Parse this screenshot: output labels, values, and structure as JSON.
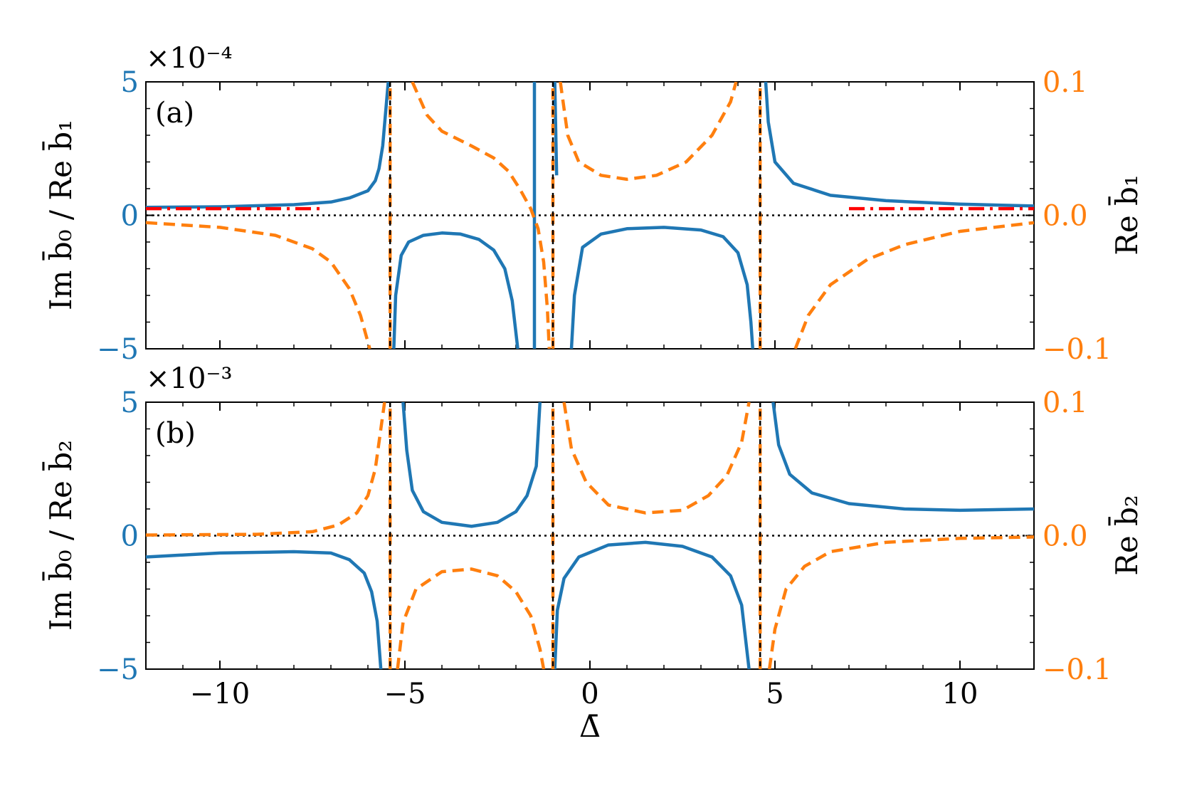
{
  "colors": {
    "left_axis": "#1f77b4",
    "right_axis": "#ff7f0e",
    "asymptote_marker": "#ff0000",
    "reference": "#000000"
  },
  "x_axis": {
    "label": "Δ̄",
    "xlim": [
      -12,
      12
    ],
    "ticks": [
      -10,
      -5,
      0,
      5,
      10
    ],
    "tick_labels": [
      "−10",
      "−5",
      "0",
      "5",
      "10"
    ]
  },
  "chart_data": [
    {
      "type": "line",
      "panel_label": "(a)",
      "xlim": [
        -12,
        12
      ],
      "left_axis": {
        "label": "Im b̄₀ / Re b̄₁",
        "ylim": [
          -0.0005,
          0.0005
        ],
        "scale_label": "×10⁻⁴",
        "ticks": [
          -5,
          0,
          5
        ],
        "tick_labels": [
          "−5",
          "0",
          "5"
        ]
      },
      "right_axis": {
        "label": "Re b̄₁",
        "ylim": [
          -0.1,
          0.1
        ],
        "ticks": [
          -0.1,
          0.0,
          0.1
        ],
        "tick_labels": [
          "−0.1",
          "0.0",
          "0.1"
        ]
      },
      "vertical_lines": [
        -5.4,
        -1.0,
        4.6
      ],
      "zero_line": 0,
      "series": [
        {
          "axis": "left",
          "style": "solid",
          "color": "#1f77b4",
          "segments": [
            [
              [
                -12,
                3e-05
              ],
              [
                -10,
                3.2e-05
              ],
              [
                -8,
                4e-05
              ],
              [
                -7,
                5e-05
              ],
              [
                -6.5,
                6.5e-05
              ],
              [
                -6.0,
                9.2e-05
              ],
              [
                -5.8,
                0.00013
              ],
              [
                -5.7,
                0.000175
              ],
              [
                -5.6,
                0.00026
              ],
              [
                -5.5,
                0.00042
              ],
              [
                -5.45,
                0.0005
              ]
            ],
            [
              [
                -5.3,
                -0.0005
              ],
              [
                -5.25,
                -0.0003
              ],
              [
                -5.1,
                -0.00015
              ],
              [
                -4.9,
                -0.0001
              ],
              [
                -4.5,
                -7.5e-05
              ],
              [
                -4.0,
                -6.6e-05
              ],
              [
                -3.5,
                -7e-05
              ],
              [
                -3.0,
                -9e-05
              ],
              [
                -2.6,
                -0.00013
              ],
              [
                -2.3,
                -0.0002
              ],
              [
                -2.1,
                -0.00032
              ],
              [
                -1.95,
                -0.0005
              ]
            ],
            [
              [
                -1.5,
                -0.0005
              ],
              [
                -1.5,
                0.0005
              ]
            ],
            [
              [
                -0.95,
                0.0005
              ],
              [
                -0.9,
                0.00015
              ]
            ],
            [
              [
                -0.5,
                -0.0005
              ],
              [
                -0.42,
                -0.0003
              ],
              [
                -0.2,
                -0.00012
              ],
              [
                0.3,
                -7e-05
              ],
              [
                1.0,
                -5e-05
              ],
              [
                2.0,
                -4.5e-05
              ],
              [
                3.0,
                -5.5e-05
              ],
              [
                3.6,
                -8e-05
              ],
              [
                4.0,
                -0.00014
              ],
              [
                4.25,
                -0.00026
              ],
              [
                4.35,
                -0.0004
              ],
              [
                4.4,
                -0.0005
              ]
            ],
            [
              [
                4.75,
                0.0005
              ],
              [
                4.82,
                0.00035
              ],
              [
                5.0,
                0.0002
              ],
              [
                5.5,
                0.00012
              ],
              [
                6.5,
                7.5e-05
              ],
              [
                8,
                5.5e-05
              ],
              [
                10,
                4.2e-05
              ],
              [
                12,
                3.5e-05
              ]
            ]
          ]
        },
        {
          "axis": "right",
          "style": "dashed",
          "color": "#ff7f0e",
          "segments": [
            [
              [
                -12,
                -0.0055
              ],
              [
                -10,
                -0.009
              ],
              [
                -8.5,
                -0.015
              ],
              [
                -7.5,
                -0.025
              ],
              [
                -7,
                -0.035
              ],
              [
                -6.5,
                -0.055
              ],
              [
                -6.2,
                -0.075
              ],
              [
                -5.95,
                -0.1
              ]
            ],
            [
              [
                -5.4,
                -0.1
              ],
              [
                -5.4,
                0.1
              ]
            ],
            [
              [
                -4.8,
                0.1
              ],
              [
                -4.4,
                0.075
              ],
              [
                -4.0,
                0.063
              ],
              [
                -3.2,
                0.052
              ],
              [
                -2.6,
                0.043
              ],
              [
                -2.2,
                0.033
              ],
              [
                -1.9,
                0.02
              ],
              [
                -1.6,
                0.005
              ],
              [
                -1.4,
                -0.01
              ],
              [
                -1.25,
                -0.035
              ],
              [
                -1.15,
                -0.07
              ],
              [
                -1.1,
                -0.1
              ]
            ],
            [
              [
                -1.0,
                -0.1
              ],
              [
                -1.0,
                0.1
              ]
            ],
            [
              [
                -0.8,
                0.1
              ],
              [
                -0.6,
                0.06
              ],
              [
                -0.3,
                0.04
              ],
              [
                0.3,
                0.03
              ],
              [
                1.0,
                0.027
              ],
              [
                1.8,
                0.03
              ],
              [
                2.6,
                0.04
              ],
              [
                3.3,
                0.06
              ],
              [
                3.8,
                0.085
              ],
              [
                3.95,
                0.1
              ]
            ],
            [
              [
                4.6,
                -0.1
              ],
              [
                4.6,
                0.1
              ]
            ],
            [
              [
                5.55,
                -0.1
              ],
              [
                5.9,
                -0.075
              ],
              [
                6.5,
                -0.052
              ],
              [
                7.5,
                -0.033
              ],
              [
                8.5,
                -0.022
              ],
              [
                10,
                -0.012
              ],
              [
                12,
                -0.0055
              ]
            ]
          ]
        },
        {
          "axis": "left",
          "style": "dashdot",
          "color": "#ff0000",
          "segments": [
            [
              [
                -12,
                2.5e-05
              ],
              [
                -7.2,
                2.5e-05
              ]
            ],
            [
              [
                7.0,
                2.5e-05
              ],
              [
                12,
                2.5e-05
              ]
            ]
          ]
        }
      ]
    },
    {
      "type": "line",
      "panel_label": "(b)",
      "xlim": [
        -12,
        12
      ],
      "left_axis": {
        "label": "Im b̄₀ / Re b̄₂",
        "ylim": [
          -0.005,
          0.005
        ],
        "scale_label": "×10⁻³",
        "ticks": [
          -5,
          0,
          5
        ],
        "tick_labels": [
          "−5",
          "0",
          "5"
        ]
      },
      "right_axis": {
        "label": "Re b̄₂",
        "ylim": [
          -0.1,
          0.1
        ],
        "ticks": [
          -0.1,
          0.0,
          0.1
        ],
        "tick_labels": [
          "−0.1",
          "0.0",
          "0.1"
        ]
      },
      "vertical_lines": [
        -5.4,
        -1.0,
        4.6
      ],
      "zero_line": 0,
      "series": [
        {
          "axis": "left",
          "style": "solid",
          "color": "#1f77b4",
          "segments": [
            [
              [
                -12,
                -0.0008
              ],
              [
                -10,
                -0.00065
              ],
              [
                -8,
                -0.0006
              ],
              [
                -7,
                -0.00065
              ],
              [
                -6.5,
                -0.0009
              ],
              [
                -6.1,
                -0.0014
              ],
              [
                -5.9,
                -0.0021
              ],
              [
                -5.75,
                -0.0032
              ],
              [
                -5.65,
                -0.005
              ]
            ],
            [
              [
                -5.05,
                0.005
              ],
              [
                -4.95,
                0.0032
              ],
              [
                -4.8,
                0.0017
              ],
              [
                -4.5,
                0.0009
              ],
              [
                -4.0,
                0.0005
              ],
              [
                -3.2,
                0.00035
              ],
              [
                -2.5,
                0.0005
              ],
              [
                -2.0,
                0.0009
              ],
              [
                -1.7,
                0.0015
              ],
              [
                -1.45,
                0.0026
              ],
              [
                -1.35,
                0.005
              ]
            ],
            [
              [
                -0.95,
                -0.005
              ],
              [
                -0.88,
                -0.0028
              ],
              [
                -0.7,
                -0.0016
              ],
              [
                -0.3,
                -0.0008
              ],
              [
                0.5,
                -0.00035
              ],
              [
                1.5,
                -0.00025
              ],
              [
                2.5,
                -0.0004
              ],
              [
                3.3,
                -0.0008
              ],
              [
                3.8,
                -0.0015
              ],
              [
                4.1,
                -0.0026
              ],
              [
                4.3,
                -0.005
              ]
            ],
            [
              [
                4.95,
                0.005
              ],
              [
                5.1,
                0.0034
              ],
              [
                5.4,
                0.0023
              ],
              [
                6.0,
                0.0016
              ],
              [
                7.0,
                0.0012
              ],
              [
                8.5,
                0.001
              ],
              [
                10,
                0.00095
              ],
              [
                12,
                0.001
              ]
            ]
          ]
        },
        {
          "axis": "right",
          "style": "dashed",
          "color": "#ff7f0e",
          "segments": [
            [
              [
                -12,
                0.0005
              ],
              [
                -9,
                0.001
              ],
              [
                -7.5,
                0.003
              ],
              [
                -6.8,
                0.008
              ],
              [
                -6.3,
                0.017
              ],
              [
                -6.0,
                0.03
              ],
              [
                -5.8,
                0.05
              ],
              [
                -5.65,
                0.08
              ],
              [
                -5.55,
                0.1
              ]
            ],
            [
              [
                -5.4,
                -0.1
              ],
              [
                -5.4,
                0.1
              ]
            ],
            [
              [
                -5.2,
                -0.1
              ],
              [
                -5.05,
                -0.065
              ],
              [
                -4.7,
                -0.04
              ],
              [
                -4.0,
                -0.027
              ],
              [
                -3.2,
                -0.025
              ],
              [
                -2.5,
                -0.03
              ],
              [
                -2.0,
                -0.042
              ],
              [
                -1.6,
                -0.06
              ],
              [
                -1.35,
                -0.085
              ],
              [
                -1.25,
                -0.1
              ]
            ],
            [
              [
                -1.0,
                -0.1
              ],
              [
                -1.0,
                0.1
              ]
            ],
            [
              [
                -0.7,
                0.1
              ],
              [
                -0.5,
                0.065
              ],
              [
                -0.1,
                0.04
              ],
              [
                0.5,
                0.023
              ],
              [
                1.5,
                0.017
              ],
              [
                2.5,
                0.019
              ],
              [
                3.2,
                0.03
              ],
              [
                3.7,
                0.045
              ],
              [
                4.1,
                0.07
              ],
              [
                4.3,
                0.1
              ]
            ],
            [
              [
                4.6,
                -0.1
              ],
              [
                4.6,
                0.1
              ]
            ],
            [
              [
                4.85,
                -0.1
              ],
              [
                5.0,
                -0.07
              ],
              [
                5.3,
                -0.04
              ],
              [
                5.8,
                -0.023
              ],
              [
                6.5,
                -0.012
              ],
              [
                8,
                -0.005
              ],
              [
                10,
                -0.002
              ],
              [
                12,
                -0.001
              ]
            ]
          ]
        }
      ]
    }
  ]
}
